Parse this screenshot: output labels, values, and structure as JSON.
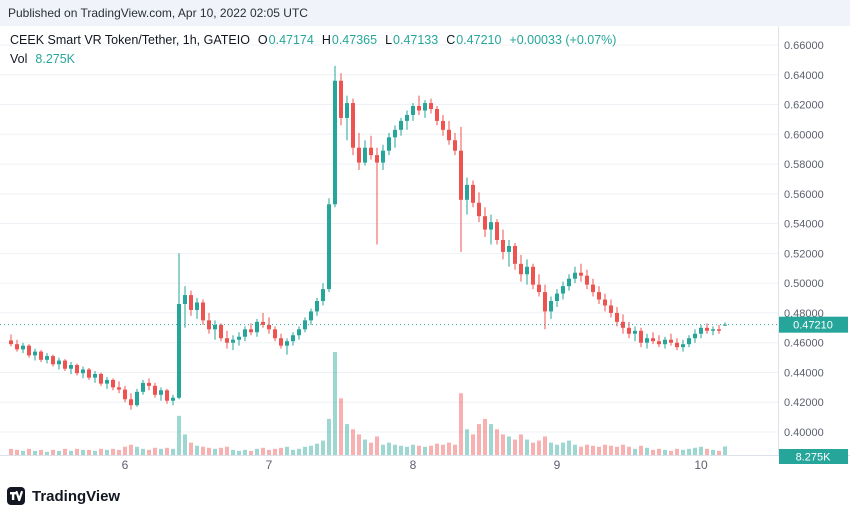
{
  "published_bar": {
    "text": "Published on TradingView.com, Apr 10, 2022 02:05 UTC"
  },
  "legend": {
    "title": "CEEK Smart VR Token/Tether, 1h, GATEIO",
    "ohlc": [
      {
        "label": "O",
        "value": "0.47174"
      },
      {
        "label": "H",
        "value": "0.47365"
      },
      {
        "label": "L",
        "value": "0.47133"
      },
      {
        "label": "C",
        "value": "0.47210"
      }
    ],
    "change": "+0.00033 (+0.07%)",
    "vol_label": "Vol",
    "vol_value": "8.275K"
  },
  "price_axis": {
    "labels": [
      "0.66000",
      "0.64000",
      "0.62000",
      "0.60000",
      "0.58000",
      "0.56000",
      "0.54000",
      "0.52000",
      "0.50000",
      "0.48000",
      "0.46000",
      "0.44000",
      "0.42000",
      "0.40000"
    ]
  },
  "time_axis": {
    "labels": [
      "6",
      "7",
      "8",
      "9",
      "10"
    ]
  },
  "last_price": {
    "value": "0.47210",
    "price": 0.4721
  },
  "last_volume": {
    "value": "8.275K"
  },
  "footer": {
    "brand": "TradingView",
    "logo_icon": "tradingview-logo"
  },
  "colors": {
    "up": "#26a69a",
    "down": "#ef5350",
    "vol_up": "rgba(38,166,154,0.45)",
    "vol_down": "rgba(239,83,80,0.45)",
    "grid": "#eef1f6",
    "axis_border": "#dde1ea",
    "axis_text": "#5d616e",
    "badge_bg": "#26a69a",
    "badge_text": "#ffffff",
    "header_text": "#131722"
  },
  "chart_data": {
    "type": "candlestick",
    "title": "CEEK Smart VR Token/Tether, 1h, GATEIO",
    "symbol": "CEEK Smart VR Token/Tether",
    "interval": "1h",
    "exchange": "GATEIO",
    "last_ohlc": {
      "open": 0.47174,
      "high": 0.47365,
      "low": 0.47133,
      "close": 0.4721,
      "change": 0.00033,
      "change_pct": 0.07,
      "volume_k": 8.275
    },
    "price_range": [
      0.4,
      0.66
    ],
    "grid_step": 0.02,
    "legend_position": "top-left",
    "grid": true,
    "x_ticks": [
      {
        "candle": 19,
        "label": "6"
      },
      {
        "candle": 43,
        "label": "7"
      },
      {
        "candle": 67,
        "label": "8"
      },
      {
        "candle": 91,
        "label": "9"
      },
      {
        "candle": 115,
        "label": "10"
      }
    ],
    "columns": [
      "open",
      "high",
      "low",
      "close",
      "volume_k"
    ],
    "candles": [
      [
        0.4615,
        0.4655,
        0.4575,
        0.459,
        6
      ],
      [
        0.459,
        0.462,
        0.454,
        0.4555,
        5
      ],
      [
        0.4555,
        0.46,
        0.453,
        0.458,
        4
      ],
      [
        0.458,
        0.459,
        0.45,
        0.4515,
        6
      ],
      [
        0.4515,
        0.456,
        0.448,
        0.454,
        4
      ],
      [
        0.454,
        0.455,
        0.447,
        0.4485,
        5
      ],
      [
        0.4485,
        0.453,
        0.446,
        0.451,
        3
      ],
      [
        0.451,
        0.452,
        0.444,
        0.4455,
        5
      ],
      [
        0.4455,
        0.45,
        0.442,
        0.448,
        4
      ],
      [
        0.448,
        0.449,
        0.441,
        0.4425,
        6
      ],
      [
        0.4425,
        0.447,
        0.439,
        0.445,
        4
      ],
      [
        0.445,
        0.446,
        0.438,
        0.4395,
        6
      ],
      [
        0.4395,
        0.444,
        0.436,
        0.442,
        5
      ],
      [
        0.442,
        0.443,
        0.435,
        0.4365,
        5
      ],
      [
        0.4365,
        0.441,
        0.433,
        0.439,
        4
      ],
      [
        0.439,
        0.44,
        0.431,
        0.4325,
        6
      ],
      [
        0.4325,
        0.437,
        0.429,
        0.435,
        5
      ],
      [
        0.435,
        0.436,
        0.428,
        0.43,
        6
      ],
      [
        0.43,
        0.434,
        0.426,
        0.4285,
        5
      ],
      [
        0.4285,
        0.431,
        0.42,
        0.422,
        8
      ],
      [
        0.422,
        0.426,
        0.415,
        0.418,
        10
      ],
      [
        0.418,
        0.429,
        0.417,
        0.427,
        8
      ],
      [
        0.427,
        0.435,
        0.425,
        0.433,
        6
      ],
      [
        0.433,
        0.436,
        0.428,
        0.431,
        5
      ],
      [
        0.431,
        0.433,
        0.423,
        0.425,
        7
      ],
      [
        0.425,
        0.43,
        0.421,
        0.428,
        6
      ],
      [
        0.428,
        0.429,
        0.419,
        0.421,
        7
      ],
      [
        0.421,
        0.425,
        0.418,
        0.423,
        6
      ],
      [
        0.423,
        0.52,
        0.422,
        0.486,
        38
      ],
      [
        0.486,
        0.498,
        0.47,
        0.492,
        20
      ],
      [
        0.492,
        0.495,
        0.478,
        0.482,
        12
      ],
      [
        0.482,
        0.49,
        0.476,
        0.487,
        9
      ],
      [
        0.487,
        0.489,
        0.472,
        0.475,
        8
      ],
      [
        0.475,
        0.48,
        0.466,
        0.469,
        7
      ],
      [
        0.469,
        0.475,
        0.462,
        0.472,
        6
      ],
      [
        0.472,
        0.473,
        0.461,
        0.463,
        7
      ],
      [
        0.463,
        0.468,
        0.456,
        0.46,
        8
      ],
      [
        0.46,
        0.465,
        0.455,
        0.462,
        5
      ],
      [
        0.462,
        0.467,
        0.458,
        0.464,
        4
      ],
      [
        0.464,
        0.471,
        0.461,
        0.469,
        5
      ],
      [
        0.469,
        0.473,
        0.465,
        0.467,
        4
      ],
      [
        0.467,
        0.476,
        0.464,
        0.474,
        6
      ],
      [
        0.474,
        0.48,
        0.47,
        0.472,
        7
      ],
      [
        0.472,
        0.477,
        0.466,
        0.469,
        5
      ],
      [
        0.469,
        0.471,
        0.461,
        0.463,
        6
      ],
      [
        0.463,
        0.466,
        0.456,
        0.458,
        7
      ],
      [
        0.458,
        0.463,
        0.452,
        0.461,
        8
      ],
      [
        0.461,
        0.467,
        0.458,
        0.465,
        5
      ],
      [
        0.465,
        0.471,
        0.462,
        0.469,
        6
      ],
      [
        0.469,
        0.477,
        0.467,
        0.475,
        8
      ],
      [
        0.475,
        0.483,
        0.472,
        0.481,
        9
      ],
      [
        0.481,
        0.49,
        0.478,
        0.488,
        11
      ],
      [
        0.488,
        0.5,
        0.485,
        0.496,
        14
      ],
      [
        0.496,
        0.557,
        0.494,
        0.553,
        35
      ],
      [
        0.553,
        0.646,
        0.551,
        0.636,
        100
      ],
      [
        0.636,
        0.641,
        0.606,
        0.611,
        55
      ],
      [
        0.611,
        0.626,
        0.596,
        0.621,
        30
      ],
      [
        0.621,
        0.624,
        0.586,
        0.591,
        25
      ],
      [
        0.591,
        0.601,
        0.576,
        0.581,
        20
      ],
      [
        0.581,
        0.596,
        0.579,
        0.591,
        15
      ],
      [
        0.591,
        0.599,
        0.583,
        0.586,
        12
      ],
      [
        0.586,
        0.591,
        0.526,
        0.581,
        18
      ],
      [
        0.581,
        0.593,
        0.576,
        0.589,
        10
      ],
      [
        0.589,
        0.601,
        0.586,
        0.598,
        12
      ],
      [
        0.598,
        0.606,
        0.591,
        0.603,
        10
      ],
      [
        0.603,
        0.611,
        0.599,
        0.609,
        9
      ],
      [
        0.609,
        0.616,
        0.603,
        0.613,
        8
      ],
      [
        0.613,
        0.621,
        0.609,
        0.619,
        10
      ],
      [
        0.619,
        0.626,
        0.613,
        0.616,
        9
      ],
      [
        0.616,
        0.623,
        0.611,
        0.621,
        8
      ],
      [
        0.621,
        0.624,
        0.614,
        0.617,
        9
      ],
      [
        0.617,
        0.619,
        0.606,
        0.609,
        11
      ],
      [
        0.609,
        0.613,
        0.599,
        0.603,
        10
      ],
      [
        0.603,
        0.609,
        0.593,
        0.596,
        12
      ],
      [
        0.596,
        0.601,
        0.586,
        0.589,
        10
      ],
      [
        0.589,
        0.605,
        0.521,
        0.556,
        60
      ],
      [
        0.556,
        0.571,
        0.546,
        0.566,
        25
      ],
      [
        0.566,
        0.569,
        0.551,
        0.554,
        20
      ],
      [
        0.554,
        0.561,
        0.541,
        0.545,
        30
      ],
      [
        0.545,
        0.551,
        0.531,
        0.536,
        35
      ],
      [
        0.536,
        0.546,
        0.526,
        0.541,
        30
      ],
      [
        0.541,
        0.543,
        0.526,
        0.529,
        25
      ],
      [
        0.529,
        0.536,
        0.516,
        0.521,
        20
      ],
      [
        0.521,
        0.529,
        0.511,
        0.525,
        18
      ],
      [
        0.525,
        0.527,
        0.509,
        0.513,
        15
      ],
      [
        0.513,
        0.519,
        0.501,
        0.506,
        20
      ],
      [
        0.506,
        0.516,
        0.499,
        0.511,
        15
      ],
      [
        0.511,
        0.513,
        0.496,
        0.499,
        12
      ],
      [
        0.499,
        0.506,
        0.491,
        0.494,
        14
      ],
      [
        0.494,
        0.499,
        0.469,
        0.481,
        18
      ],
      [
        0.481,
        0.491,
        0.476,
        0.488,
        12
      ],
      [
        0.488,
        0.496,
        0.484,
        0.493,
        10
      ],
      [
        0.493,
        0.501,
        0.489,
        0.498,
        12
      ],
      [
        0.498,
        0.506,
        0.495,
        0.503,
        14
      ],
      [
        0.503,
        0.511,
        0.5,
        0.507,
        10
      ],
      [
        0.507,
        0.513,
        0.501,
        0.505,
        8
      ],
      [
        0.505,
        0.509,
        0.496,
        0.499,
        10
      ],
      [
        0.499,
        0.503,
        0.491,
        0.494,
        9
      ],
      [
        0.494,
        0.498,
        0.486,
        0.489,
        8
      ],
      [
        0.489,
        0.493,
        0.481,
        0.485,
        10
      ],
      [
        0.485,
        0.489,
        0.477,
        0.48,
        9
      ],
      [
        0.48,
        0.484,
        0.471,
        0.474,
        8
      ],
      [
        0.474,
        0.479,
        0.466,
        0.47,
        10
      ],
      [
        0.47,
        0.474,
        0.463,
        0.466,
        8
      ],
      [
        0.466,
        0.471,
        0.461,
        0.468,
        6
      ],
      [
        0.468,
        0.47,
        0.457,
        0.46,
        9
      ],
      [
        0.46,
        0.466,
        0.456,
        0.463,
        7
      ],
      [
        0.463,
        0.467,
        0.459,
        0.461,
        5
      ],
      [
        0.461,
        0.465,
        0.457,
        0.459,
        6
      ],
      [
        0.459,
        0.464,
        0.456,
        0.462,
        5
      ],
      [
        0.462,
        0.466,
        0.458,
        0.46,
        4
      ],
      [
        0.46,
        0.463,
        0.455,
        0.457,
        6
      ],
      [
        0.457,
        0.462,
        0.454,
        0.459,
        5
      ],
      [
        0.459,
        0.465,
        0.457,
        0.463,
        6
      ],
      [
        0.463,
        0.469,
        0.46,
        0.466,
        7
      ],
      [
        0.466,
        0.472,
        0.463,
        0.47,
        8
      ],
      [
        0.47,
        0.473,
        0.466,
        0.468,
        6
      ],
      [
        0.468,
        0.471,
        0.465,
        0.469,
        5
      ],
      [
        0.469,
        0.472,
        0.466,
        0.468,
        4
      ],
      [
        0.47174,
        0.47365,
        0.47133,
        0.4721,
        8.275
      ]
    ]
  }
}
